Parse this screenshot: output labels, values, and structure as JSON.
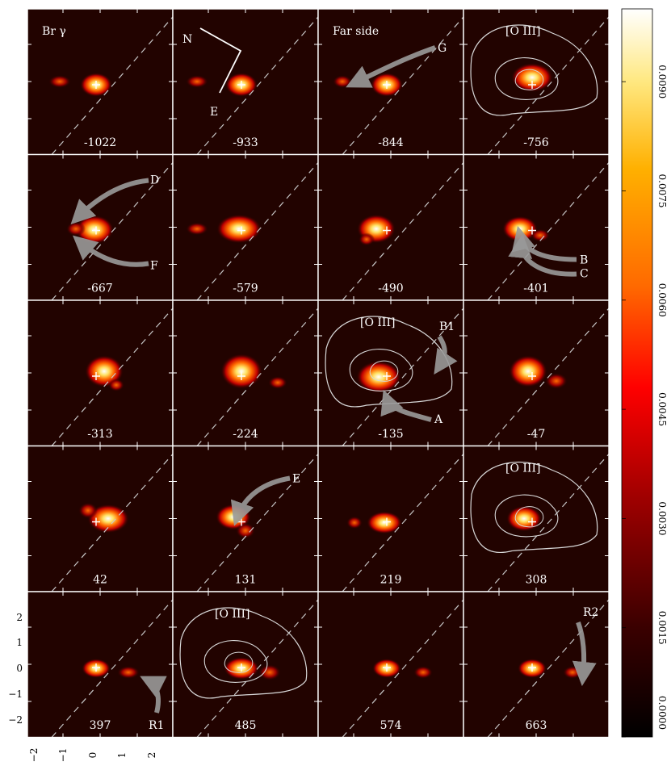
{
  "figure": {
    "line_label": "Br γ",
    "compass": {
      "north": "N",
      "east": "E"
    },
    "contour_label": "[O III]",
    "far_side_label": "Far side",
    "panels": [
      {
        "velocity": "-1022",
        "label": "Br γ"
      },
      {
        "velocity": "-933",
        "label": ""
      },
      {
        "velocity": "-844",
        "label": "Far side"
      },
      {
        "velocity": "-756",
        "label": "[O III]",
        "contour": true
      },
      {
        "velocity": "-667",
        "label": ""
      },
      {
        "velocity": "-579",
        "label": ""
      },
      {
        "velocity": "-490",
        "label": ""
      },
      {
        "velocity": "-401",
        "label": ""
      },
      {
        "velocity": "-313",
        "label": ""
      },
      {
        "velocity": "-224",
        "label": ""
      },
      {
        "velocity": "-135",
        "label": "[O III]",
        "contour": true
      },
      {
        "velocity": "-47",
        "label": ""
      },
      {
        "velocity": "42",
        "label": ""
      },
      {
        "velocity": "131",
        "label": ""
      },
      {
        "velocity": "219",
        "label": ""
      },
      {
        "velocity": "308",
        "label": "[O III]",
        "contour": true
      },
      {
        "velocity": "397",
        "label": ""
      },
      {
        "velocity": "485",
        "label": "[O III]",
        "contour": true
      },
      {
        "velocity": "574",
        "label": ""
      },
      {
        "velocity": "663",
        "label": ""
      }
    ],
    "feature_labels": {
      "G": "G",
      "D": "D",
      "F": "F",
      "B": "B",
      "C": "C",
      "B1": "B1",
      "A": "A",
      "E": "E",
      "R1": "R1",
      "R2": "R2"
    },
    "y_ticks": [
      "2",
      "1",
      "0",
      "−1",
      "−2"
    ],
    "x_ticks": [
      "−2",
      "−1",
      "0",
      "1",
      "2"
    ],
    "colorbar": {
      "ticks": [
        "0.0000",
        "0.0015",
        "0.0030",
        "0.0045",
        "0.0060",
        "0.0075",
        "0.0090"
      ],
      "colormap": [
        "#000000",
        "#3a0000",
        "#8a0000",
        "#e00000",
        "#ff5a00",
        "#ffa000",
        "#ffe060",
        "#ffffff"
      ]
    }
  }
}
